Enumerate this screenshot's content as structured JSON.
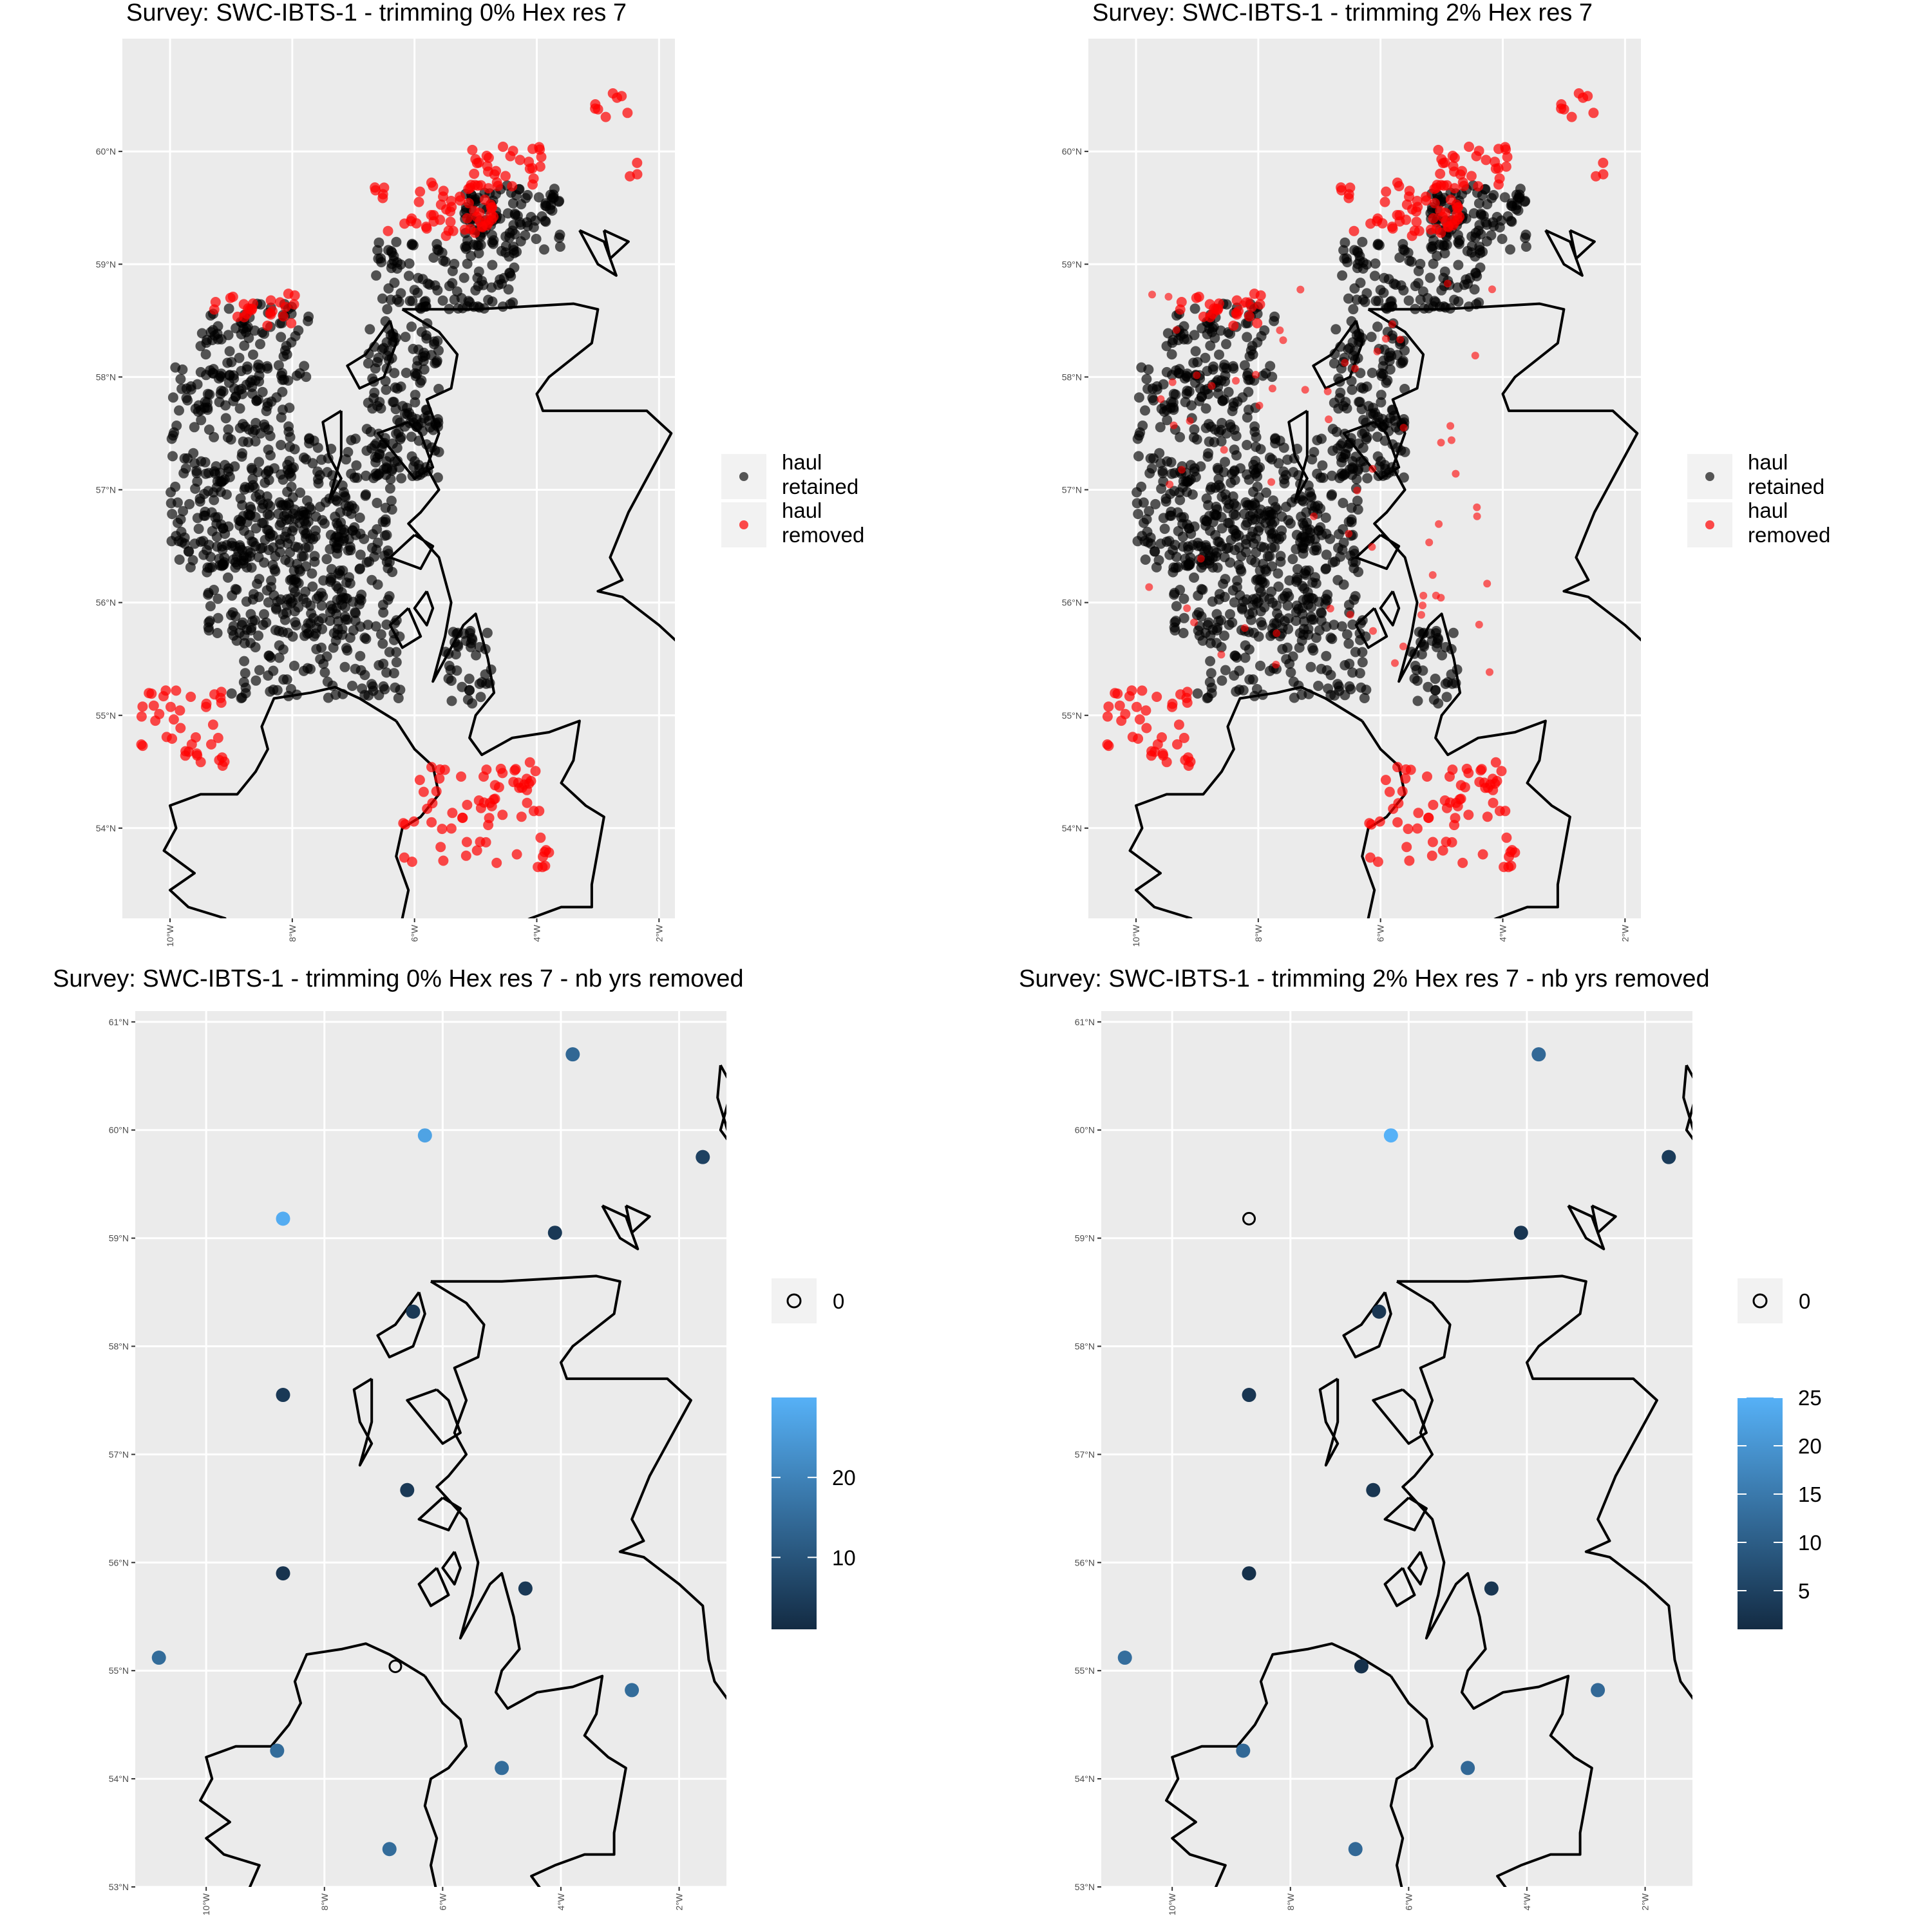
{
  "panels": [
    {
      "title": "Survey: SWC-IBTS-1 - trimming 0% Hex res 7",
      "kind": "haul",
      "lon_range": [
        -10.78,
        -1.74
      ],
      "lat_range": [
        53.2,
        61.0
      ],
      "lon_ticks": [
        -10,
        -8,
        -6,
        -4,
        -2
      ],
      "lon_labels": [
        "10°W",
        "8°W",
        "6°W",
        "4°W",
        "2°W"
      ],
      "lat_ticks": [
        54,
        55,
        56,
        57,
        58,
        59,
        60
      ],
      "lat_labels": [
        "54°N",
        "55°N",
        "56°N",
        "57°N",
        "58°N",
        "59°N",
        "60°N"
      ],
      "legend": [
        "haul retained",
        "haul removed"
      ]
    },
    {
      "title": "Survey: SWC-IBTS-1 - trimming 2% Hex res 7",
      "kind": "haul",
      "lon_range": [
        -10.78,
        -1.74
      ],
      "lat_range": [
        53.2,
        61.0
      ],
      "lon_ticks": [
        -10,
        -8,
        -6,
        -4,
        -2
      ],
      "lon_labels": [
        "10°W",
        "8°W",
        "6°W",
        "4°W",
        "2°W"
      ],
      "lat_ticks": [
        54,
        55,
        56,
        57,
        58,
        59,
        60
      ],
      "lat_labels": [
        "54°N",
        "55°N",
        "56°N",
        "57°N",
        "58°N",
        "59°N",
        "60°N"
      ],
      "legend": [
        "haul retained",
        "haul removed"
      ]
    },
    {
      "title": "Survey: SWC-IBTS-1 - trimming 0% Hex res 7 - nb yrs removed",
      "kind": "years",
      "lon_range": [
        -11.2,
        -1.2
      ],
      "lat_range": [
        53.0,
        61.1
      ],
      "lon_ticks": [
        -10,
        -8,
        -6,
        -4,
        -2
      ],
      "lon_labels": [
        "10°W",
        "8°W",
        "6°W",
        "4°W",
        "2°W"
      ],
      "lat_ticks": [
        53,
        54,
        55,
        56,
        57,
        58,
        59,
        60,
        61
      ],
      "lat_labels": [
        "53°N",
        "54°N",
        "55°N",
        "56°N",
        "57°N",
        "58°N",
        "59°N",
        "60°N",
        "61°N"
      ],
      "legend_zero": "0",
      "colorbar": {
        "min": 1,
        "max": 30,
        "ticks": [
          10,
          20
        ],
        "tick_labels": [
          "10",
          "20"
        ],
        "low_color": "#132b43",
        "high_color": "#56b1f7"
      },
      "points": [
        {
          "lon": -3.8,
          "lat": 60.7,
          "value": 14
        },
        {
          "lon": -6.3,
          "lat": 59.95,
          "value": 27
        },
        {
          "lon": -1.6,
          "lat": 59.75,
          "value": 6
        },
        {
          "lon": -8.7,
          "lat": 59.18,
          "value": 29
        },
        {
          "lon": -4.1,
          "lat": 59.05,
          "value": 4
        },
        {
          "lon": -6.5,
          "lat": 58.32,
          "value": 4
        },
        {
          "lon": -8.7,
          "lat": 57.55,
          "value": 4
        },
        {
          "lon": -6.6,
          "lat": 56.67,
          "value": 4
        },
        {
          "lon": -8.7,
          "lat": 55.9,
          "value": 3
        },
        {
          "lon": -4.6,
          "lat": 55.76,
          "value": 4
        },
        {
          "lon": -10.8,
          "lat": 55.12,
          "value": 15
        },
        {
          "lon": -6.8,
          "lat": 55.04,
          "value": 0
        },
        {
          "lon": -2.8,
          "lat": 54.82,
          "value": 15
        },
        {
          "lon": -8.8,
          "lat": 54.26,
          "value": 15
        },
        {
          "lon": -5.0,
          "lat": 54.1,
          "value": 15
        },
        {
          "lon": -6.9,
          "lat": 53.35,
          "value": 15
        }
      ]
    },
    {
      "title": "Survey: SWC-IBTS-1 - trimming 2% Hex res 7 - nb yrs removed",
      "kind": "years",
      "lon_range": [
        -11.2,
        -1.2
      ],
      "lat_range": [
        53.0,
        61.1
      ],
      "lon_ticks": [
        -10,
        -8,
        -6,
        -4,
        -2
      ],
      "lon_labels": [
        "10°W",
        "8°W",
        "6°W",
        "4°W",
        "2°W"
      ],
      "lat_ticks": [
        53,
        54,
        55,
        56,
        57,
        58,
        59,
        60,
        61
      ],
      "lat_labels": [
        "53°N",
        "54°N",
        "55°N",
        "56°N",
        "57°N",
        "58°N",
        "59°N",
        "60°N",
        "61°N"
      ],
      "legend_zero": "0",
      "colorbar": {
        "min": 1,
        "max": 25,
        "ticks": [
          5,
          10,
          15,
          20,
          25
        ],
        "tick_labels": [
          "5",
          "10",
          "15",
          "20",
          "25"
        ],
        "low_color": "#132b43",
        "high_color": "#56b1f7"
      },
      "points": [
        {
          "lon": -3.8,
          "lat": 60.7,
          "value": 12
        },
        {
          "lon": -6.3,
          "lat": 59.95,
          "value": 25
        },
        {
          "lon": -1.6,
          "lat": 59.75,
          "value": 4
        },
        {
          "lon": -8.7,
          "lat": 59.18,
          "value": 0
        },
        {
          "lon": -4.1,
          "lat": 59.05,
          "value": 3
        },
        {
          "lon": -6.5,
          "lat": 58.32,
          "value": 3
        },
        {
          "lon": -8.7,
          "lat": 57.55,
          "value": 3
        },
        {
          "lon": -6.6,
          "lat": 56.67,
          "value": 3
        },
        {
          "lon": -8.7,
          "lat": 55.9,
          "value": 2
        },
        {
          "lon": -4.6,
          "lat": 55.76,
          "value": 3
        },
        {
          "lon": -10.8,
          "lat": 55.12,
          "value": 13
        },
        {
          "lon": -6.8,
          "lat": 55.04,
          "value": 2
        },
        {
          "lon": -2.8,
          "lat": 54.82,
          "value": 12
        },
        {
          "lon": -8.8,
          "lat": 54.26,
          "value": 12
        },
        {
          "lon": -5.0,
          "lat": 54.1,
          "value": 12
        },
        {
          "lon": -6.9,
          "lat": 53.35,
          "value": 12
        }
      ]
    }
  ],
  "colors": {
    "panel_bg": "#ebebeb",
    "grid": "#ffffff",
    "retained": "#000000",
    "removed": "#ff0000",
    "coast": "#000000"
  },
  "coastlines": [
    [
      [
        -6.2,
        58.6
      ],
      [
        -5.0,
        58.6
      ],
      [
        -3.4,
        58.65
      ],
      [
        -3.0,
        58.6
      ],
      [
        -3.1,
        58.3
      ],
      [
        -3.8,
        58.0
      ],
      [
        -4.0,
        57.85
      ],
      [
        -3.9,
        57.7
      ],
      [
        -3.3,
        57.7
      ],
      [
        -2.2,
        57.7
      ],
      [
        -1.8,
        57.5
      ],
      [
        -2.2,
        57.1
      ],
      [
        -2.5,
        56.8
      ],
      [
        -2.8,
        56.4
      ],
      [
        -2.6,
        56.2
      ],
      [
        -3.0,
        56.1
      ],
      [
        -2.6,
        56.05
      ],
      [
        -2.0,
        55.8
      ],
      [
        -1.6,
        55.6
      ],
      [
        -1.5,
        55.1
      ],
      [
        -1.4,
        54.9
      ],
      [
        -1.0,
        54.6
      ],
      [
        -0.6,
        54.4
      ],
      [
        -0.1,
        54.1
      ]
    ],
    [
      [
        -6.2,
        58.6
      ],
      [
        -5.6,
        58.4
      ],
      [
        -5.3,
        58.2
      ],
      [
        -5.4,
        57.9
      ],
      [
        -5.8,
        57.8
      ],
      [
        -5.6,
        57.5
      ],
      [
        -5.8,
        57.2
      ],
      [
        -5.6,
        57.0
      ],
      [
        -5.9,
        56.8
      ],
      [
        -6.1,
        56.7
      ],
      [
        -5.6,
        56.4
      ],
      [
        -5.4,
        56.0
      ],
      [
        -5.5,
        55.7
      ],
      [
        -5.7,
        55.3
      ],
      [
        -5.6,
        55.4
      ],
      [
        -5.2,
        55.8
      ],
      [
        -5.0,
        55.9
      ],
      [
        -4.9,
        55.7
      ],
      [
        -4.8,
        55.5
      ],
      [
        -4.7,
        55.2
      ],
      [
        -5.0,
        55.0
      ],
      [
        -5.1,
        54.8
      ],
      [
        -4.9,
        54.65
      ],
      [
        -4.4,
        54.8
      ],
      [
        -3.8,
        54.85
      ],
      [
        -3.3,
        54.95
      ],
      [
        -3.4,
        54.6
      ],
      [
        -3.6,
        54.4
      ],
      [
        -3.2,
        54.2
      ],
      [
        -2.9,
        54.1
      ],
      [
        -3.0,
        53.8
      ],
      [
        -3.1,
        53.5
      ],
      [
        -3.1,
        53.3
      ],
      [
        -3.6,
        53.3
      ],
      [
        -4.1,
        53.2
      ],
      [
        -4.5,
        53.1
      ],
      [
        -4.3,
        52.95
      ]
    ],
    [
      [
        -6.3,
        54.95
      ],
      [
        -6.0,
        54.7
      ],
      [
        -5.7,
        54.55
      ],
      [
        -5.6,
        54.3
      ],
      [
        -5.9,
        54.1
      ],
      [
        -6.2,
        54.0
      ],
      [
        -6.3,
        53.75
      ],
      [
        -6.1,
        53.45
      ],
      [
        -6.2,
        53.2
      ],
      [
        -6.1,
        52.95
      ]
    ],
    [
      [
        -6.3,
        54.95
      ],
      [
        -6.9,
        55.15
      ],
      [
        -7.3,
        55.25
      ],
      [
        -7.7,
        55.2
      ],
      [
        -8.3,
        55.15
      ],
      [
        -8.5,
        54.9
      ],
      [
        -8.4,
        54.7
      ],
      [
        -8.6,
        54.5
      ],
      [
        -8.9,
        54.3
      ],
      [
        -9.5,
        54.3
      ],
      [
        -10.0,
        54.2
      ],
      [
        -9.9,
        54.0
      ],
      [
        -10.1,
        53.8
      ],
      [
        -9.6,
        53.6
      ],
      [
        -10.0,
        53.45
      ],
      [
        -9.7,
        53.3
      ],
      [
        -9.1,
        53.2
      ],
      [
        -9.3,
        52.95
      ]
    ],
    [
      [
        -6.4,
        58.5
      ],
      [
        -6.8,
        58.2
      ],
      [
        -7.1,
        58.1
      ],
      [
        -6.9,
        57.9
      ],
      [
        -6.5,
        58.0
      ],
      [
        -6.3,
        58.3
      ],
      [
        -6.4,
        58.5
      ]
    ],
    [
      [
        -7.2,
        57.7
      ],
      [
        -7.5,
        57.6
      ],
      [
        -7.4,
        57.3
      ],
      [
        -7.2,
        57.1
      ],
      [
        -7.4,
        56.9
      ],
      [
        -7.2,
        57.3
      ],
      [
        -7.2,
        57.7
      ]
    ],
    [
      [
        -6.1,
        57.6
      ],
      [
        -6.6,
        57.5
      ],
      [
        -6.3,
        57.3
      ],
      [
        -6.0,
        57.1
      ],
      [
        -5.7,
        57.2
      ],
      [
        -5.9,
        57.5
      ],
      [
        -6.1,
        57.6
      ]
    ],
    [
      [
        -6.0,
        56.6
      ],
      [
        -6.4,
        56.4
      ],
      [
        -5.9,
        56.3
      ],
      [
        -5.7,
        56.5
      ],
      [
        -6.0,
        56.6
      ]
    ],
    [
      [
        -6.1,
        55.95
      ],
      [
        -6.4,
        55.8
      ],
      [
        -6.2,
        55.6
      ],
      [
        -5.9,
        55.7
      ],
      [
        -6.1,
        55.95
      ]
    ],
    [
      [
        -5.8,
        56.1
      ],
      [
        -6.0,
        55.95
      ],
      [
        -5.8,
        55.8
      ],
      [
        -5.7,
        55.95
      ],
      [
        -5.8,
        56.1
      ]
    ],
    [
      [
        -3.3,
        59.3
      ],
      [
        -3.0,
        59.0
      ],
      [
        -2.7,
        58.9
      ],
      [
        -2.9,
        59.2
      ],
      [
        -3.3,
        59.3
      ]
    ],
    [
      [
        -2.9,
        59.3
      ],
      [
        -2.5,
        59.2
      ],
      [
        -2.8,
        59.05
      ],
      [
        -2.9,
        59.3
      ]
    ],
    [
      [
        -1.3,
        60.6
      ],
      [
        -1.1,
        60.4
      ],
      [
        -1.3,
        60.0
      ],
      [
        -1.1,
        59.85
      ],
      [
        -1.35,
        60.3
      ],
      [
        -1.3,
        60.6
      ]
    ]
  ]
}
